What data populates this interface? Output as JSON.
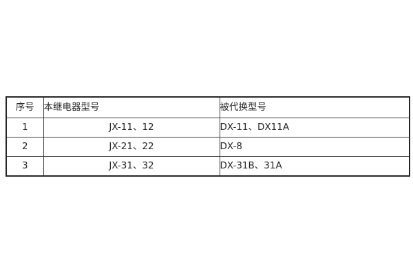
{
  "page": {
    "background": "#ffffff"
  },
  "table": {
    "name": "relay-model-replacement-table",
    "colors": {
      "outer_border": "#262626",
      "inner_border": "#3d3d3d",
      "text": "#262626",
      "cell_background": "#ffffff"
    },
    "columns": [
      {
        "key": "index",
        "label": "序号"
      },
      {
        "key": "current_model",
        "label": "本继电器型号"
      },
      {
        "key": "replaced_model",
        "label": "被代换型号"
      }
    ],
    "rows": [
      {
        "index": "1",
        "current_model": "JX-11、12",
        "replaced_model": "DX-11、DX11A"
      },
      {
        "index": "2",
        "current_model": "JX-21、22",
        "replaced_model": "DX-8"
      },
      {
        "index": "3",
        "current_model": "JX-31、32",
        "replaced_model": "DX-31B、31A"
      }
    ]
  }
}
